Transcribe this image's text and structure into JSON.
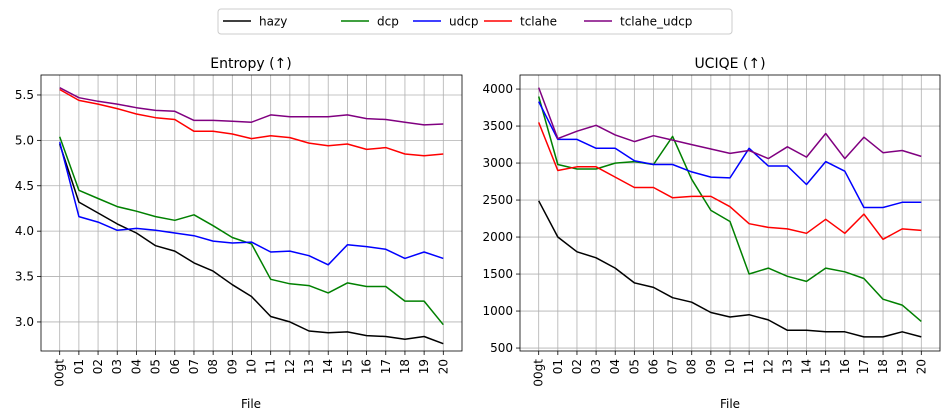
{
  "legend": [
    {
      "name": "hazy",
      "color": "#000000"
    },
    {
      "name": "dcp",
      "color": "#008000"
    },
    {
      "name": "udcp",
      "color": "#0000ff"
    },
    {
      "name": "tclahe",
      "color": "#ff0000"
    },
    {
      "name": "tclahe_udcp",
      "color": "#800080"
    }
  ],
  "chart_data": [
    {
      "type": "line",
      "title": "Entropy (↑)",
      "xlabel": "File",
      "ylabel": "",
      "categories": [
        "00gt",
        "01",
        "02",
        "03",
        "04",
        "05",
        "06",
        "07",
        "08",
        "09",
        "10",
        "11",
        "12",
        "13",
        "14",
        "15",
        "16",
        "17",
        "18",
        "19",
        "20"
      ],
      "ylim": [
        2.68,
        5.72
      ],
      "yticks": [
        3.0,
        3.5,
        4.0,
        4.5,
        5.0,
        5.5
      ],
      "ytick_labels": [
        "3.0",
        "3.5",
        "4.0",
        "4.5",
        "5.0",
        "5.5"
      ],
      "grid": true,
      "series": [
        {
          "name": "hazy",
          "color": "#000000",
          "values": [
            4.96,
            4.32,
            4.2,
            4.08,
            3.98,
            3.84,
            3.78,
            3.65,
            3.56,
            3.41,
            3.28,
            3.06,
            3.0,
            2.9,
            2.88,
            2.89,
            2.85,
            2.84,
            2.81,
            2.84,
            2.76
          ]
        },
        {
          "name": "dcp",
          "color": "#008000",
          "values": [
            5.04,
            4.45,
            4.36,
            4.27,
            4.22,
            4.16,
            4.12,
            4.18,
            4.06,
            3.93,
            3.86,
            3.47,
            3.42,
            3.4,
            3.32,
            3.43,
            3.39,
            3.39,
            3.23,
            3.23,
            2.97
          ]
        },
        {
          "name": "udcp",
          "color": "#0000ff",
          "values": [
            4.98,
            4.16,
            4.1,
            4.01,
            4.03,
            4.01,
            3.98,
            3.95,
            3.89,
            3.87,
            3.88,
            3.77,
            3.78,
            3.73,
            3.63,
            3.85,
            3.83,
            3.8,
            3.7,
            3.77,
            3.7
          ]
        },
        {
          "name": "tclahe",
          "color": "#ff0000",
          "values": [
            5.56,
            5.44,
            5.4,
            5.35,
            5.29,
            5.25,
            5.23,
            5.1,
            5.1,
            5.07,
            5.02,
            5.05,
            5.03,
            4.97,
            4.94,
            4.96,
            4.9,
            4.92,
            4.85,
            4.83,
            4.85
          ]
        },
        {
          "name": "tclahe_udcp",
          "color": "#800080",
          "values": [
            5.58,
            5.47,
            5.43,
            5.4,
            5.36,
            5.33,
            5.32,
            5.22,
            5.22,
            5.21,
            5.2,
            5.28,
            5.26,
            5.26,
            5.26,
            5.28,
            5.24,
            5.23,
            5.2,
            5.17,
            5.18
          ]
        }
      ]
    },
    {
      "type": "line",
      "title": "UCIQE (↑)",
      "xlabel": "File",
      "ylabel": "",
      "categories": [
        "00gt",
        "01",
        "02",
        "03",
        "04",
        "05",
        "06",
        "07",
        "08",
        "09",
        "10",
        "11",
        "12",
        "13",
        "14",
        "15",
        "16",
        "17",
        "18",
        "19",
        "20"
      ],
      "ylim": [
        460,
        4190
      ],
      "yticks": [
        500,
        1000,
        1500,
        2000,
        2500,
        3000,
        3500,
        4000
      ],
      "ytick_labels": [
        "500",
        "1000",
        "1500",
        "2000",
        "2500",
        "3000",
        "3500",
        "4000"
      ],
      "grid": true,
      "series": [
        {
          "name": "hazy",
          "color": "#000000",
          "values": [
            2490,
            2000,
            1800,
            1720,
            1580,
            1380,
            1320,
            1180,
            1120,
            980,
            920,
            950,
            880,
            740,
            740,
            720,
            720,
            650,
            650,
            720,
            650
          ]
        },
        {
          "name": "dcp",
          "color": "#008000",
          "values": [
            3900,
            2980,
            2920,
            2920,
            3000,
            3020,
            2980,
            3360,
            2780,
            2360,
            2210,
            1500,
            1580,
            1470,
            1400,
            1580,
            1530,
            1440,
            1160,
            1080,
            860
          ]
        },
        {
          "name": "udcp",
          "color": "#0000ff",
          "values": [
            3830,
            3320,
            3320,
            3200,
            3200,
            3030,
            2980,
            2980,
            2880,
            2810,
            2800,
            3200,
            2960,
            2960,
            2710,
            3020,
            2890,
            2400,
            2400,
            2470,
            2470
          ]
        },
        {
          "name": "tclahe",
          "color": "#ff0000",
          "values": [
            3550,
            2900,
            2950,
            2950,
            2810,
            2670,
            2670,
            2530,
            2550,
            2550,
            2410,
            2180,
            2130,
            2110,
            2050,
            2240,
            2050,
            2310,
            1970,
            2110,
            2090
          ]
        },
        {
          "name": "tclahe_udcp",
          "color": "#800080",
          "values": [
            4020,
            3330,
            3430,
            3510,
            3380,
            3290,
            3370,
            3310,
            3250,
            3190,
            3130,
            3170,
            3060,
            3220,
            3080,
            3400,
            3060,
            3350,
            3140,
            3170,
            3090
          ]
        }
      ]
    }
  ]
}
